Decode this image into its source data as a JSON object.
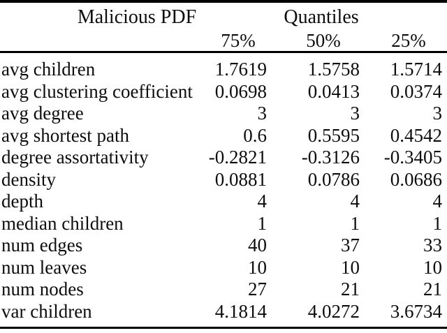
{
  "table": {
    "header": {
      "group_left": "Malicious PDF",
      "group_right": "Quantiles",
      "columns": [
        "75%",
        "50%",
        "25%"
      ]
    },
    "rows": [
      {
        "label": "avg children",
        "values": [
          "1.7619",
          "1.5758",
          "1.5714"
        ]
      },
      {
        "label": "avg clustering coefficient",
        "values": [
          "0.0698",
          "0.0413",
          "0.0374"
        ]
      },
      {
        "label": "avg degree",
        "values": [
          "3",
          "3",
          "3"
        ]
      },
      {
        "label": "avg shortest path",
        "values": [
          "0.6",
          "0.5595",
          "0.4542"
        ]
      },
      {
        "label": "degree assortativity",
        "values": [
          "-0.2821",
          "-0.3126",
          "-0.3405"
        ]
      },
      {
        "label": "density",
        "values": [
          "0.0881",
          "0.0786",
          "0.0686"
        ]
      },
      {
        "label": "depth",
        "values": [
          "4",
          "4",
          "4"
        ]
      },
      {
        "label": "median children",
        "values": [
          "1",
          "1",
          "1"
        ]
      },
      {
        "label": "num edges",
        "values": [
          "40",
          "37",
          "33"
        ]
      },
      {
        "label": "num leaves",
        "values": [
          "10",
          "10",
          "10"
        ]
      },
      {
        "label": "num nodes",
        "values": [
          "27",
          "21",
          "21"
        ]
      },
      {
        "label": "var children",
        "values": [
          "4.1814",
          "4.0272",
          "3.6734"
        ]
      }
    ],
    "colors": {
      "text": "#0d0d0d",
      "rule": "#000000",
      "background": "#ffffff"
    }
  }
}
